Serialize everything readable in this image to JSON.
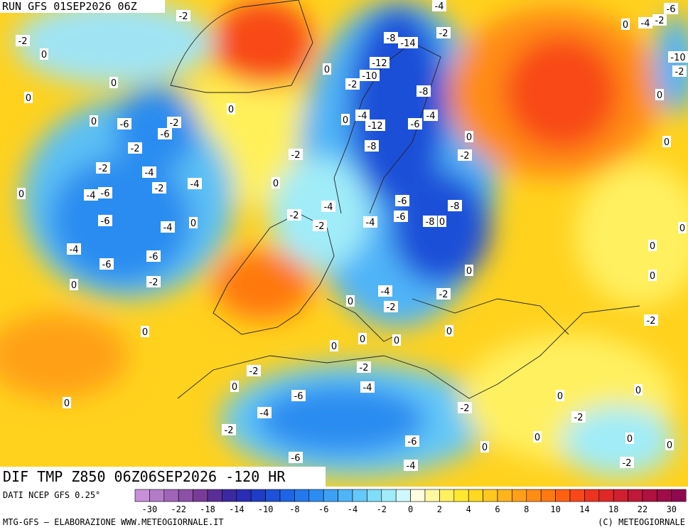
{
  "header": {
    "run": "RUN GFS 01SEP2026 06Z"
  },
  "footer": {
    "title": "DIF TMP Z850 06Z06SEP2026 -120 HR",
    "source": "DATI NCEP GFS 0.25°",
    "credit": "MTG-GFS — ELABORAZIONE WWW.METEOGIORNALE.IT",
    "copyright": "(C) METEOGIORNALE"
  },
  "colorbar": {
    "colors": [
      "#c890d8",
      "#b47cc8",
      "#a064b8",
      "#8c50a8",
      "#783c98",
      "#5a2e96",
      "#3c28a0",
      "#2a2cb4",
      "#1e3cc8",
      "#1e50d8",
      "#1e64e4",
      "#2478ec",
      "#2c8cf0",
      "#3ca0f4",
      "#50b4f8",
      "#64c8f8",
      "#80dcf8",
      "#a0ecf8",
      "#d0f8fc",
      "#fffce0",
      "#fff8a0",
      "#fff060",
      "#ffe830",
      "#ffd820",
      "#ffc820",
      "#ffb41c",
      "#ffa018",
      "#ff8c14",
      "#ff7810",
      "#ff6010",
      "#f84818",
      "#ec3420",
      "#e02828",
      "#d02030",
      "#c01838",
      "#b01040",
      "#a00c48",
      "#900850"
    ],
    "labels": [
      "-30",
      "-22",
      "-18",
      "-14",
      "-10",
      "-8",
      "-6",
      "-4",
      "-2",
      "0",
      "2",
      "4",
      "6",
      "8",
      "10",
      "14",
      "18",
      "22",
      "30"
    ]
  },
  "contour_labels": [
    "-2",
    "0",
    "0",
    "0",
    "-2",
    "0",
    "0",
    "0",
    "-6",
    "-2",
    "-6",
    "-2",
    "-2",
    "-4",
    "-2",
    "-4",
    "0",
    "-4",
    "-6",
    "-6",
    "-4",
    "0",
    "-4",
    "-6",
    "-6",
    "0",
    "-2",
    "0",
    "-2",
    "0",
    "-2",
    "-2",
    "-4",
    "-4",
    "-6",
    "-6",
    "-8",
    "-8",
    "0",
    "0",
    "-4",
    "-2",
    "0",
    "-2",
    "0",
    "0",
    "0",
    "0",
    "-2",
    "-2",
    "0",
    "-4",
    "-6",
    "-2",
    "-4",
    "-2",
    "-6",
    "-6",
    "-4",
    "0",
    "0",
    "-8",
    "-14",
    "-2",
    "-12",
    "-10",
    "-2",
    "-8",
    "-4",
    "-12",
    "-6",
    "-4",
    "-8",
    "-2",
    "0",
    "0",
    "-4",
    "-6",
    "0",
    "-4",
    "-2",
    "-10",
    "-2",
    "0",
    "0",
    "0",
    "0",
    "0",
    "-2",
    "0",
    "0",
    "-2",
    "0",
    "0",
    "0",
    "-2"
  ]
}
